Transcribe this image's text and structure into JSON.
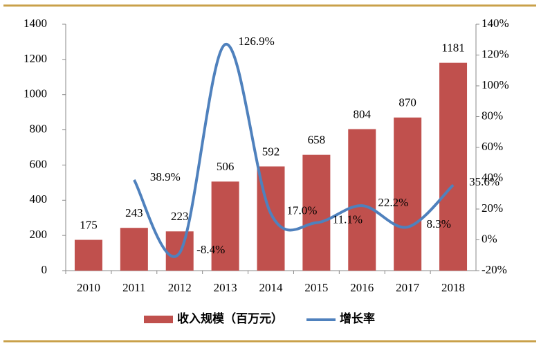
{
  "chart_data": {
    "type": "bar",
    "categories": [
      "2010",
      "2011",
      "2012",
      "2013",
      "2014",
      "2015",
      "2016",
      "2017",
      "2018"
    ],
    "series": [
      {
        "name": "收入规模（百万元）",
        "type": "bar",
        "color": "#c0504d",
        "values": [
          175,
          243,
          223,
          506,
          592,
          658,
          804,
          870,
          1181
        ]
      },
      {
        "name": "增长率",
        "type": "line",
        "axis": "y2",
        "color": "#4f81bd",
        "values": [
          null,
          38.9,
          -8.4,
          126.9,
          17.0,
          11.1,
          22.2,
          8.3,
          35.6
        ],
        "value_labels": [
          null,
          "38.9%",
          "-8.4%",
          "126.9%",
          "17.0%",
          "11.1%",
          "22.2%",
          "8.3%",
          "35.6%"
        ]
      }
    ],
    "ylim": [
      0,
      1400
    ],
    "yticks": [
      0,
      200,
      400,
      600,
      800,
      1000,
      1200,
      1400
    ],
    "y2lim": [
      -20,
      140
    ],
    "y2ticks": [
      {
        "value": -20,
        "label": "-20%"
      },
      {
        "value": 0,
        "label": "0%"
      },
      {
        "value": 20,
        "label": "20%"
      },
      {
        "value": 40,
        "label": "40%"
      },
      {
        "value": 60,
        "label": "60%"
      },
      {
        "value": 80,
        "label": "80%"
      },
      {
        "value": 100,
        "label": "100%"
      },
      {
        "value": 120,
        "label": "120%"
      },
      {
        "value": 140,
        "label": "140%"
      }
    ],
    "grid": false
  }
}
